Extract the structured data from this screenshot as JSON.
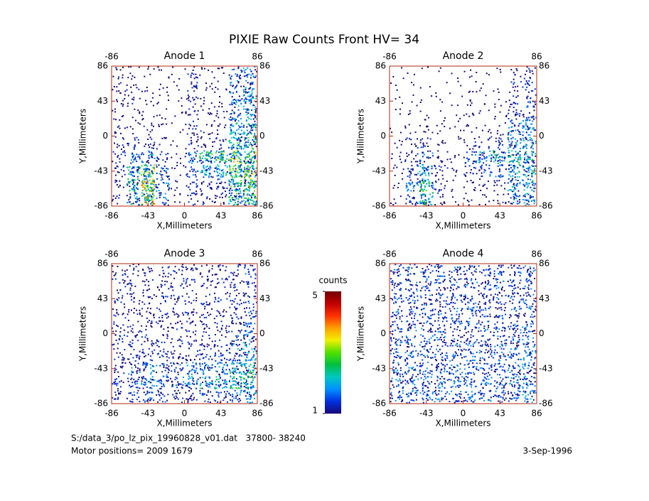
{
  "title": "PIXIE Raw Counts Front HV= 34",
  "footer": {
    "file": "S:/data_3/po_lz_pix_19960828_v01.dat   37800- 38240",
    "motor": "Motor positions= 2009 1679",
    "date": "3-Sep-1996"
  },
  "chart_data": [
    {
      "type": "heatmap",
      "title": "Anode 1",
      "xlabel": "X,Millimeters",
      "ylabel": "Y,Millimeters",
      "xlim": [
        -86,
        86
      ],
      "ylim": [
        -86,
        86
      ],
      "xticks": [
        -86,
        -43,
        0,
        43,
        86
      ],
      "yticks": [
        -86,
        -43,
        0,
        43,
        86
      ],
      "x2ticks": [
        -86,
        86
      ],
      "y2ticks": [
        -86,
        -43,
        0,
        43,
        86
      ],
      "frame_color": "#b02810",
      "values": [
        [
          0.6,
          0.5,
          0.3,
          0.3,
          0.2,
          0.8,
          0.4,
          0.4,
          1.2,
          1.5
        ],
        [
          0.6,
          0.5,
          0.3,
          0.3,
          0.2,
          0.8,
          0.4,
          0.4,
          1.2,
          1.8
        ],
        [
          0.5,
          0.5,
          0.3,
          0.3,
          0.2,
          0.8,
          0.4,
          0.4,
          1.5,
          2.0
        ],
        [
          0.5,
          0.4,
          0.4,
          0.3,
          0.2,
          0.8,
          0.4,
          0.5,
          1.5,
          2.0
        ],
        [
          0.5,
          0.4,
          0.5,
          0.3,
          0.2,
          0.8,
          0.5,
          0.5,
          2.0,
          2.5
        ],
        [
          0.6,
          0.8,
          0.8,
          0.4,
          0.2,
          0.8,
          0.6,
          0.7,
          2.5,
          2.5
        ],
        [
          0.8,
          1.2,
          1.5,
          0.8,
          0.3,
          1.5,
          2.5,
          3.0,
          3.5,
          3.0
        ],
        [
          0.8,
          2.0,
          3.5,
          1.5,
          0.3,
          1.0,
          2.0,
          2.0,
          3.0,
          3.5
        ],
        [
          0.6,
          2.5,
          4.5,
          1.5,
          0.3,
          0.8,
          0.8,
          1.0,
          3.0,
          3.5
        ],
        [
          0.5,
          2.0,
          4.0,
          1.2,
          0.3,
          0.8,
          0.6,
          0.8,
          2.5,
          3.0
        ]
      ]
    },
    {
      "type": "heatmap",
      "title": "Anode 2",
      "xlabel": "X,Millimeters",
      "ylabel": "Y,Millimeters",
      "xlim": [
        -86,
        86
      ],
      "ylim": [
        -86,
        86
      ],
      "xticks": [
        -86,
        -43,
        0,
        43,
        86
      ],
      "yticks": [
        -86,
        -43,
        0,
        43,
        86
      ],
      "x2ticks": [
        -86,
        86
      ],
      "y2ticks": [
        -86,
        -43,
        0,
        43,
        86
      ],
      "frame_color": "#b02810",
      "values": [
        [
          0.2,
          0.1,
          0.1,
          0.1,
          0.1,
          0.3,
          0.1,
          0.2,
          0.5,
          0.8
        ],
        [
          0.2,
          0.1,
          0.1,
          0.1,
          0.2,
          0.3,
          0.2,
          0.2,
          0.6,
          1.0
        ],
        [
          0.2,
          0.2,
          0.2,
          0.2,
          0.2,
          0.3,
          0.2,
          0.3,
          0.8,
          1.2
        ],
        [
          0.2,
          0.2,
          0.3,
          0.2,
          0.2,
          0.4,
          0.2,
          0.3,
          1.0,
          1.5
        ],
        [
          0.2,
          0.3,
          0.5,
          0.3,
          0.2,
          0.4,
          0.3,
          0.4,
          1.5,
          1.8
        ],
        [
          0.3,
          0.6,
          0.8,
          0.4,
          0.2,
          0.6,
          0.6,
          0.8,
          1.8,
          2.0
        ],
        [
          0.4,
          0.8,
          1.2,
          0.6,
          0.3,
          1.2,
          2.0,
          2.2,
          2.5,
          2.2
        ],
        [
          0.4,
          1.2,
          2.0,
          0.8,
          0.3,
          0.8,
          1.2,
          1.2,
          2.0,
          2.2
        ],
        [
          0.3,
          1.5,
          2.8,
          0.8,
          0.2,
          0.5,
          0.5,
          0.6,
          1.8,
          2.0
        ],
        [
          0.3,
          1.0,
          2.5,
          0.6,
          0.2,
          0.4,
          0.4,
          0.5,
          1.5,
          1.8
        ]
      ]
    },
    {
      "type": "heatmap",
      "title": "Anode 3",
      "xlabel": "X,Millimeters",
      "ylabel": "Y,Millimeters",
      "xlim": [
        -86,
        86
      ],
      "ylim": [
        -86,
        86
      ],
      "xticks": [
        -86,
        -43,
        0,
        43,
        86
      ],
      "yticks": [
        -86,
        -43,
        0,
        43,
        86
      ],
      "x2ticks": [
        -86,
        86
      ],
      "y2ticks": [
        -86,
        -43,
        0,
        43,
        86
      ],
      "frame_color": "#b02810",
      "values": [
        [
          0.7,
          0.7,
          0.7,
          0.7,
          0.7,
          0.7,
          0.7,
          0.7,
          0.8,
          1.0
        ],
        [
          0.7,
          0.7,
          0.7,
          0.7,
          0.7,
          0.7,
          0.7,
          0.7,
          0.8,
          1.0
        ],
        [
          0.7,
          0.7,
          0.7,
          0.7,
          0.7,
          0.7,
          0.7,
          0.7,
          0.8,
          1.0
        ],
        [
          0.7,
          0.7,
          0.7,
          0.7,
          0.7,
          0.7,
          0.7,
          0.7,
          0.9,
          1.2
        ],
        [
          0.7,
          0.7,
          0.7,
          0.7,
          0.7,
          0.7,
          0.7,
          0.8,
          1.0,
          1.4
        ],
        [
          0.8,
          0.8,
          0.8,
          0.8,
          0.7,
          0.7,
          0.8,
          0.9,
          1.2,
          1.6
        ],
        [
          0.8,
          0.8,
          0.9,
          0.9,
          0.8,
          0.8,
          0.9,
          1.1,
          1.5,
          2.0
        ],
        [
          0.9,
          1.2,
          1.6,
          1.2,
          1.2,
          1.4,
          1.6,
          1.8,
          2.2,
          2.5
        ],
        [
          1.0,
          1.4,
          2.0,
          1.5,
          1.4,
          1.8,
          2.0,
          2.0,
          2.5,
          2.5
        ],
        [
          0.8,
          1.0,
          1.4,
          1.0,
          0.9,
          1.0,
          1.0,
          1.1,
          1.5,
          1.8
        ]
      ]
    },
    {
      "type": "heatmap",
      "title": "Anode 4",
      "xlabel": "X,Millimeters",
      "ylabel": "Y,Millimeters",
      "xlim": [
        -86,
        86
      ],
      "ylim": [
        -86,
        86
      ],
      "xticks": [
        -86,
        -43,
        0,
        43,
        86
      ],
      "yticks": [
        -86,
        -43,
        0,
        43,
        86
      ],
      "x2ticks": [
        -86,
        86
      ],
      "y2ticks": [
        -86,
        -43,
        0,
        43,
        86
      ],
      "frame_color": "#b02810",
      "values": [
        [
          1.1,
          1.1,
          1.1,
          1.1,
          1.1,
          1.1,
          1.1,
          1.1,
          1.1,
          1.2
        ],
        [
          1.1,
          1.1,
          1.1,
          1.1,
          1.1,
          1.1,
          1.1,
          1.1,
          1.1,
          1.2
        ],
        [
          1.1,
          1.1,
          1.1,
          1.1,
          1.1,
          1.1,
          1.1,
          1.1,
          1.1,
          1.2
        ],
        [
          1.1,
          1.1,
          1.1,
          1.1,
          1.1,
          1.1,
          1.1,
          1.1,
          1.1,
          1.2
        ],
        [
          1.1,
          1.1,
          1.1,
          1.1,
          1.1,
          1.1,
          1.1,
          1.1,
          1.2,
          1.3
        ],
        [
          1.2,
          1.2,
          1.2,
          1.2,
          1.2,
          1.2,
          1.2,
          1.2,
          1.2,
          1.3
        ],
        [
          1.2,
          1.2,
          1.2,
          1.2,
          1.2,
          1.2,
          1.2,
          1.2,
          1.3,
          1.4
        ],
        [
          1.3,
          1.3,
          1.3,
          1.3,
          1.3,
          1.3,
          1.3,
          1.3,
          1.4,
          1.5
        ],
        [
          1.4,
          1.4,
          1.4,
          1.4,
          1.4,
          1.4,
          1.4,
          1.4,
          1.5,
          1.6
        ],
        [
          1.3,
          1.3,
          1.3,
          1.3,
          1.3,
          1.3,
          1.3,
          1.3,
          1.4,
          1.5
        ]
      ]
    },
    {
      "type": "colorbar",
      "label": "counts",
      "zlim": [
        1,
        5
      ],
      "ticks": [
        1,
        5
      ],
      "colormap": [
        "#180878",
        "#0030e0",
        "#0090ff",
        "#00c8c0",
        "#00c040",
        "#50e000",
        "#f0f000",
        "#ffa000",
        "#ff3000",
        "#c00000",
        "#700000"
      ]
    }
  ]
}
